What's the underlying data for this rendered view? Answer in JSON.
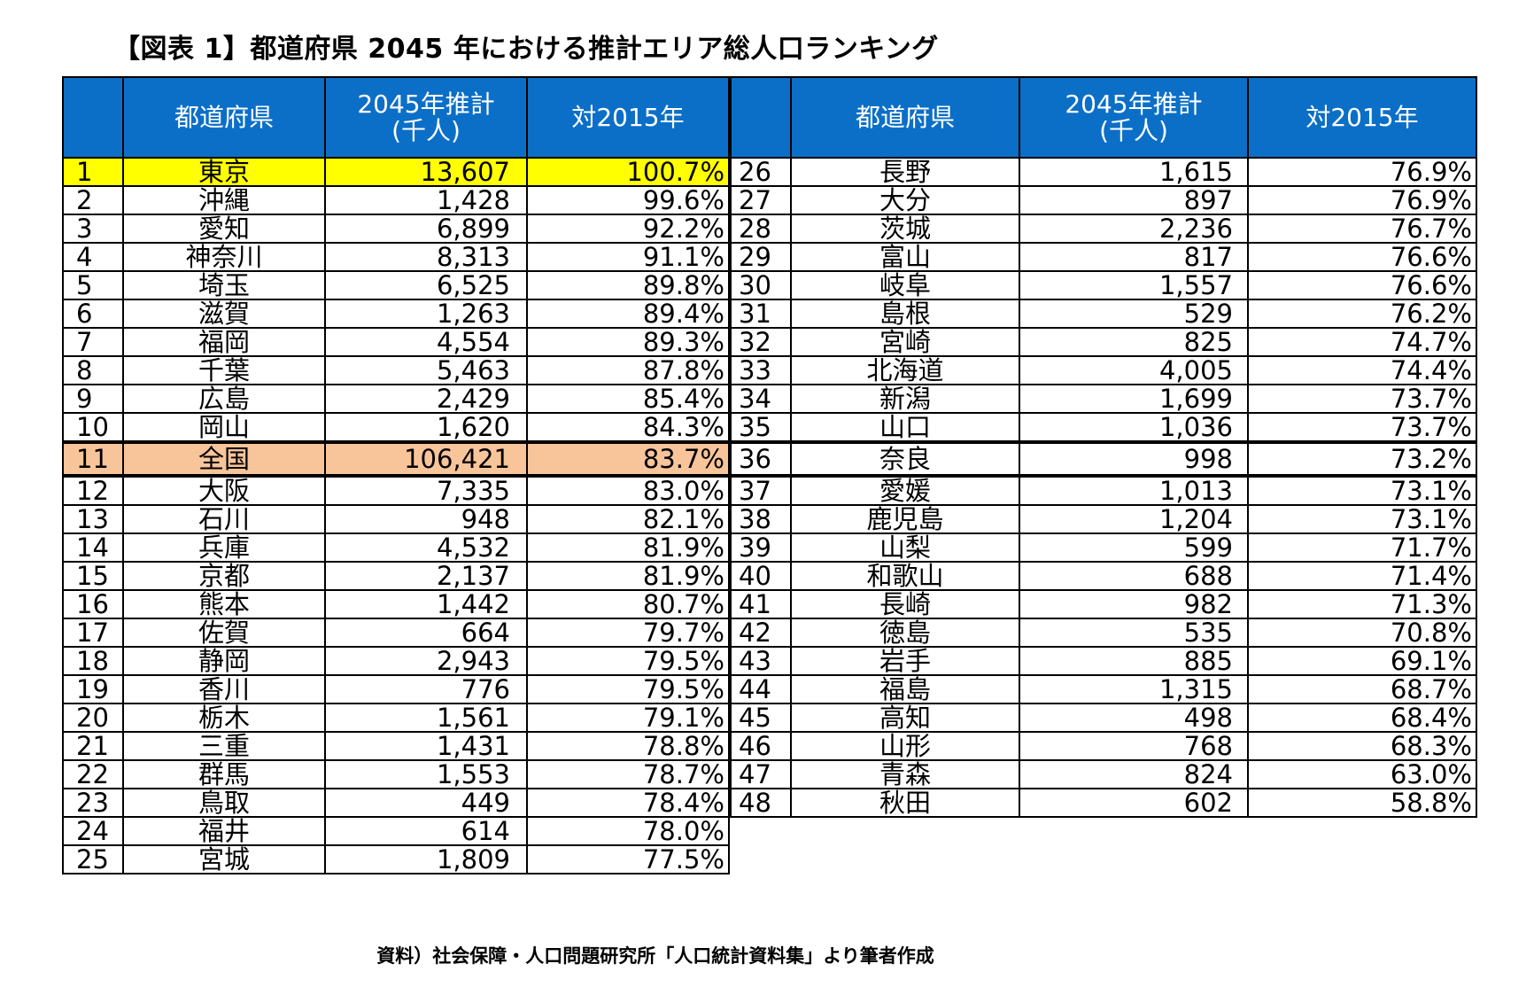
{
  "title": "【図表 1】都道府県 2045 年における推計エリア総人口ランキング",
  "headers": {
    "rank": "",
    "pref": "都道府県",
    "pop_line1": "2045年推計",
    "pop_line2": "(千人)",
    "ratio": "対2015年"
  },
  "left_rows": [
    {
      "rank": "1",
      "pref": "東京",
      "pop": "13,607",
      "ratio": "100.7%"
    },
    {
      "rank": "2",
      "pref": "沖縄",
      "pop": "1,428",
      "ratio": "99.6%"
    },
    {
      "rank": "3",
      "pref": "愛知",
      "pop": "6,899",
      "ratio": "92.2%"
    },
    {
      "rank": "4",
      "pref": "神奈川",
      "pop": "8,313",
      "ratio": "91.1%"
    },
    {
      "rank": "5",
      "pref": "埼玉",
      "pop": "6,525",
      "ratio": "89.8%"
    },
    {
      "rank": "6",
      "pref": "滋賀",
      "pop": "1,263",
      "ratio": "89.4%"
    },
    {
      "rank": "7",
      "pref": "福岡",
      "pop": "4,554",
      "ratio": "89.3%"
    },
    {
      "rank": "8",
      "pref": "千葉",
      "pop": "5,463",
      "ratio": "87.8%"
    },
    {
      "rank": "9",
      "pref": "広島",
      "pop": "2,429",
      "ratio": "85.4%"
    },
    {
      "rank": "10",
      "pref": "岡山",
      "pop": "1,620",
      "ratio": "84.3%"
    },
    {
      "rank": "11",
      "pref": "全国",
      "pop": "106,421",
      "ratio": "83.7%"
    },
    {
      "rank": "12",
      "pref": "大阪",
      "pop": "7,335",
      "ratio": "83.0%"
    },
    {
      "rank": "13",
      "pref": "石川",
      "pop": "948",
      "ratio": "82.1%"
    },
    {
      "rank": "14",
      "pref": "兵庫",
      "pop": "4,532",
      "ratio": "81.9%"
    },
    {
      "rank": "15",
      "pref": "京都",
      "pop": "2,137",
      "ratio": "81.9%"
    },
    {
      "rank": "16",
      "pref": "熊本",
      "pop": "1,442",
      "ratio": "80.7%"
    },
    {
      "rank": "17",
      "pref": "佐賀",
      "pop": "664",
      "ratio": "79.7%"
    },
    {
      "rank": "18",
      "pref": "静岡",
      "pop": "2,943",
      "ratio": "79.5%"
    },
    {
      "rank": "19",
      "pref": "香川",
      "pop": "776",
      "ratio": "79.5%"
    },
    {
      "rank": "20",
      "pref": "栃木",
      "pop": "1,561",
      "ratio": "79.1%"
    },
    {
      "rank": "21",
      "pref": "三重",
      "pop": "1,431",
      "ratio": "78.8%"
    },
    {
      "rank": "22",
      "pref": "群馬",
      "pop": "1,553",
      "ratio": "78.7%"
    },
    {
      "rank": "23",
      "pref": "鳥取",
      "pop": "449",
      "ratio": "78.4%"
    },
    {
      "rank": "24",
      "pref": "福井",
      "pop": "614",
      "ratio": "78.0%"
    },
    {
      "rank": "25",
      "pref": "宮城",
      "pop": "1,809",
      "ratio": "77.5%"
    }
  ],
  "right_rows": [
    {
      "rank": "26",
      "pref": "長野",
      "pop": "1,615",
      "ratio": "76.9%"
    },
    {
      "rank": "27",
      "pref": "大分",
      "pop": "897",
      "ratio": "76.9%"
    },
    {
      "rank": "28",
      "pref": "茨城",
      "pop": "2,236",
      "ratio": "76.7%"
    },
    {
      "rank": "29",
      "pref": "富山",
      "pop": "817",
      "ratio": "76.6%"
    },
    {
      "rank": "30",
      "pref": "岐阜",
      "pop": "1,557",
      "ratio": "76.6%"
    },
    {
      "rank": "31",
      "pref": "島根",
      "pop": "529",
      "ratio": "76.2%"
    },
    {
      "rank": "32",
      "pref": "宮崎",
      "pop": "825",
      "ratio": "74.7%"
    },
    {
      "rank": "33",
      "pref": "北海道",
      "pop": "4,005",
      "ratio": "74.4%"
    },
    {
      "rank": "34",
      "pref": "新潟",
      "pop": "1,699",
      "ratio": "73.7%"
    },
    {
      "rank": "35",
      "pref": "山口",
      "pop": "1,036",
      "ratio": "73.7%"
    },
    {
      "rank": "36",
      "pref": "奈良",
      "pop": "998",
      "ratio": "73.2%"
    },
    {
      "rank": "37",
      "pref": "愛媛",
      "pop": "1,013",
      "ratio": "73.1%"
    },
    {
      "rank": "38",
      "pref": "鹿児島",
      "pop": "1,204",
      "ratio": "73.1%"
    },
    {
      "rank": "39",
      "pref": "山梨",
      "pop": "599",
      "ratio": "71.7%"
    },
    {
      "rank": "40",
      "pref": "和歌山",
      "pop": "688",
      "ratio": "71.4%"
    },
    {
      "rank": "41",
      "pref": "長崎",
      "pop": "982",
      "ratio": "71.3%"
    },
    {
      "rank": "42",
      "pref": "徳島",
      "pop": "535",
      "ratio": "70.8%"
    },
    {
      "rank": "43",
      "pref": "岩手",
      "pop": "885",
      "ratio": "69.1%"
    },
    {
      "rank": "44",
      "pref": "福島",
      "pop": "1,315",
      "ratio": "68.7%"
    },
    {
      "rank": "45",
      "pref": "高知",
      "pop": "498",
      "ratio": "68.4%"
    },
    {
      "rank": "46",
      "pref": "山形",
      "pop": "768",
      "ratio": "68.3%"
    },
    {
      "rank": "47",
      "pref": "青森",
      "pop": "824",
      "ratio": "63.0%"
    },
    {
      "rank": "48",
      "pref": "秋田",
      "pop": "602",
      "ratio": "58.8%"
    }
  ],
  "source": "資料）社会保障・人口問題研究所「人口統計資料集」より筆者作成",
  "colors": {
    "header_bg": "#0b6fc7",
    "tokyo_highlight": "#ffff00",
    "national_highlight": "#f8c49a"
  }
}
